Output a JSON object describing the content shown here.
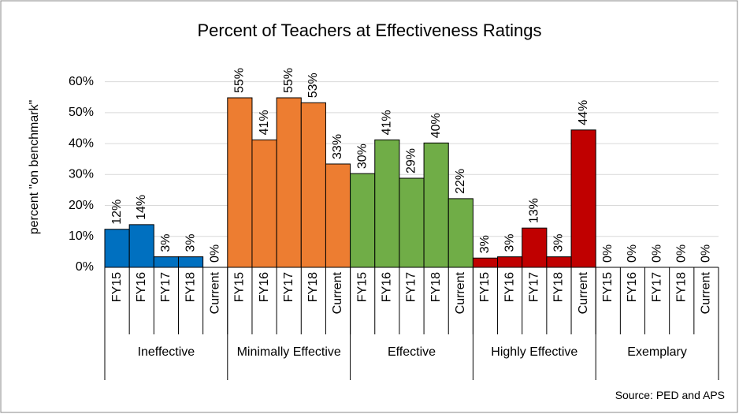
{
  "chart_data": {
    "type": "bar",
    "title": "Percent of Teachers at Effectiveness Ratings",
    "y_label": "percent \"on benchmark\"",
    "source": "Source: PED and APS",
    "categories": [
      "FY15",
      "FY16",
      "FY17",
      "FY18",
      "Current"
    ],
    "series": [
      {
        "name": "Ineffective",
        "color": "#0070c0",
        "values": [
          12.3,
          13.8,
          3.4,
          3.4,
          0
        ],
        "value_labels": [
          "12%",
          "14%",
          "3%",
          "3%",
          "0%"
        ]
      },
      {
        "name": "Minimally Effective",
        "color": "#ed7d31",
        "values": [
          54.8,
          41.2,
          54.8,
          53.2,
          33.4
        ],
        "value_labels": [
          "55%",
          "41%",
          "55%",
          "53%",
          "33%"
        ]
      },
      {
        "name": "Effective",
        "color": "#70ad47",
        "values": [
          30.3,
          41.2,
          28.8,
          40.2,
          22.2
        ],
        "value_labels": [
          "30%",
          "41%",
          "29%",
          "40%",
          "22%"
        ]
      },
      {
        "name": "Highly Effective",
        "color": "#c00000",
        "values": [
          3.0,
          3.4,
          12.7,
          3.4,
          44.4
        ],
        "value_labels": [
          "3%",
          "3%",
          "13%",
          "3%",
          "44%"
        ]
      },
      {
        "name": "Exemplary",
        "color": "#7030a0",
        "values": [
          0,
          0,
          0,
          0,
          0
        ],
        "value_labels": [
          "0%",
          "0%",
          "0%",
          "0%",
          "0%"
        ]
      }
    ],
    "ylim": [
      0,
      65
    ],
    "yticks": [
      {
        "value": 0,
        "label": "0%"
      },
      {
        "value": 10,
        "label": "10%"
      },
      {
        "value": 20,
        "label": "20%"
      },
      {
        "value": 30,
        "label": "30%"
      },
      {
        "value": 40,
        "label": "40%"
      },
      {
        "value": 50,
        "label": "50%"
      },
      {
        "value": 60,
        "label": "60%"
      }
    ],
    "grid": true
  }
}
